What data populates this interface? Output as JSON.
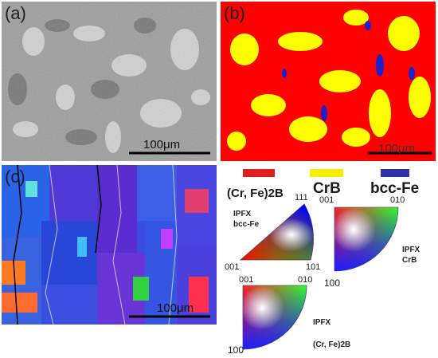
{
  "panels": {
    "a": {
      "label": "(a)",
      "scale_text": "100μm"
    },
    "b": {
      "label": "(b)",
      "scale_text": "100μm"
    },
    "c": {
      "label": "(c)",
      "scale_text": "100μm"
    }
  },
  "phase_legend": [
    {
      "name": "(Cr, Fe)2B",
      "color": "#e02020"
    },
    {
      "name": "CrB",
      "color": "#f5ef00"
    },
    {
      "name": "bcc-Fe",
      "color": "#3030a8"
    }
  ],
  "ipf": {
    "bcc": {
      "title": "IPFX",
      "phase": "bcc-Fe",
      "c1": "001",
      "c2": "101",
      "c3": "111"
    },
    "crb": {
      "title": "IPFX",
      "phase": "CrB",
      "c1": "001",
      "c2": "010",
      "c3": "100"
    },
    "cfb": {
      "title": "IPFX",
      "phase": "(Cr, Fe)2B",
      "c1": "001",
      "c2": "010",
      "c3": "100"
    }
  },
  "colors": {
    "map_red": "#ff0000",
    "map_yellow": "#ffff00",
    "map_blue": "#2020c8",
    "bse_gray": "#a8a8a8"
  }
}
